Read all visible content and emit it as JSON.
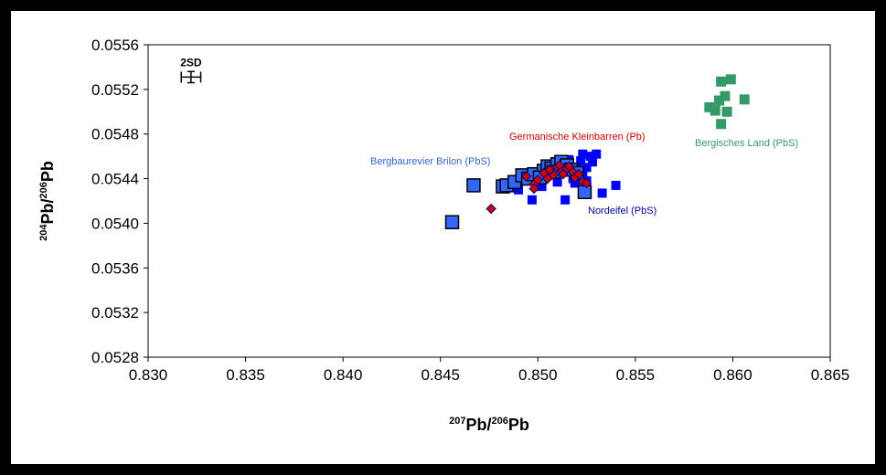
{
  "chart_data": {
    "type": "scatter",
    "xlabel": {
      "pre": "207",
      "mid": "Pb/",
      "sup2": "206",
      "post": "Pb"
    },
    "ylabel": {
      "pre": "204",
      "mid": "Pb/",
      "sup2": "206",
      "post": "Pb"
    },
    "xlim": [
      0.83,
      0.865
    ],
    "ylim": [
      0.0528,
      0.0556
    ],
    "xticks": [
      "0.830",
      "0.835",
      "0.840",
      "0.845",
      "0.850",
      "0.855",
      "0.860",
      "0.865"
    ],
    "yticks": [
      "0.0528",
      "0.0532",
      "0.0536",
      "0.0540",
      "0.0544",
      "0.0548",
      "0.0552",
      "0.0556"
    ],
    "grid": false,
    "error_bar": {
      "label": "2SD",
      "x": 0.8322,
      "y": 0.05531,
      "dx": 0.0005,
      "dy": 5e-05
    },
    "series": [
      {
        "name": "Bergisches Land (PbS)",
        "color": "#339966",
        "marker": "square",
        "points": [
          [
            0.8594,
            0.05527
          ],
          [
            0.8599,
            0.05529
          ],
          [
            0.8596,
            0.05514
          ],
          [
            0.8593,
            0.0551
          ],
          [
            0.8606,
            0.05511
          ],
          [
            0.8588,
            0.05504
          ],
          [
            0.8591,
            0.05501
          ],
          [
            0.8597,
            0.055
          ],
          [
            0.8594,
            0.05489
          ]
        ]
      },
      {
        "name": "Nordeifel (PbS)",
        "color": "#0000FF",
        "marker": "square-small",
        "points": [
          [
            0.8497,
            0.05421
          ],
          [
            0.8514,
            0.05421
          ],
          [
            0.8533,
            0.05427
          ],
          [
            0.854,
            0.05434
          ],
          [
            0.849,
            0.0543
          ],
          [
            0.8502,
            0.05433
          ],
          [
            0.851,
            0.05437
          ],
          [
            0.8518,
            0.0544
          ],
          [
            0.8523,
            0.05445
          ],
          [
            0.8525,
            0.0545
          ],
          [
            0.8522,
            0.05456
          ],
          [
            0.8527,
            0.0546
          ],
          [
            0.8523,
            0.05462
          ],
          [
            0.853,
            0.05462
          ],
          [
            0.8516,
            0.05457
          ],
          [
            0.8512,
            0.05452
          ],
          [
            0.8506,
            0.05449
          ],
          [
            0.85,
            0.05443
          ],
          [
            0.8495,
            0.05438
          ],
          [
            0.8519,
            0.05436
          ],
          [
            0.8525,
            0.05438
          ],
          [
            0.8528,
            0.05455
          ],
          [
            0.852,
            0.0545
          ],
          [
            0.8514,
            0.05447
          ]
        ]
      },
      {
        "name": "Bergbaurevier Brilon (PbS)",
        "color": "#3366FF",
        "marker": "square-large",
        "points": [
          [
            0.8456,
            0.05401
          ],
          [
            0.8467,
            0.05434
          ],
          [
            0.8482,
            0.05433
          ],
          [
            0.8484,
            0.05434
          ],
          [
            0.8488,
            0.05437
          ],
          [
            0.8492,
            0.05443
          ],
          [
            0.8495,
            0.0544
          ],
          [
            0.8498,
            0.05444
          ],
          [
            0.8503,
            0.05447
          ],
          [
            0.8505,
            0.05451
          ],
          [
            0.8507,
            0.05449
          ],
          [
            0.851,
            0.05453
          ],
          [
            0.8512,
            0.05455
          ],
          [
            0.8515,
            0.05452
          ],
          [
            0.8517,
            0.05448
          ],
          [
            0.852,
            0.05445
          ],
          [
            0.8524,
            0.05428
          ],
          [
            0.8501,
            0.05441
          ],
          [
            0.8508,
            0.05446
          ]
        ]
      },
      {
        "name": "Germanische Kleinbarren (Pb)",
        "color": "#CC0000",
        "marker": "diamond",
        "points": [
          [
            0.8476,
            0.05413
          ],
          [
            0.8494,
            0.05442
          ],
          [
            0.8498,
            0.05435
          ],
          [
            0.85,
            0.05439
          ],
          [
            0.8503,
            0.05445
          ],
          [
            0.8506,
            0.05448
          ],
          [
            0.8508,
            0.05443
          ],
          [
            0.851,
            0.0545
          ],
          [
            0.8512,
            0.05447
          ],
          [
            0.8513,
            0.05444
          ],
          [
            0.8515,
            0.05449
          ],
          [
            0.8516,
            0.05451
          ],
          [
            0.8518,
            0.05446
          ],
          [
            0.8519,
            0.05441
          ],
          [
            0.8521,
            0.05444
          ],
          [
            0.8523,
            0.05437
          ],
          [
            0.8525,
            0.05436
          ],
          [
            0.8498,
            0.05431
          ],
          [
            0.8505,
            0.0544
          ],
          [
            0.8511,
            0.05452
          ]
        ]
      }
    ],
    "annotations": [
      {
        "text": "Bergisches Land (PbS)",
        "color": "#339966"
      },
      {
        "text": "Germanische Kleinbarren (Pb)",
        "color": "#CC0000"
      },
      {
        "text": "Bergbaurevier Brilon (PbS)",
        "color": "#3366CC"
      },
      {
        "text": "Nordeifel (PbS)",
        "color": "#000099"
      }
    ]
  }
}
